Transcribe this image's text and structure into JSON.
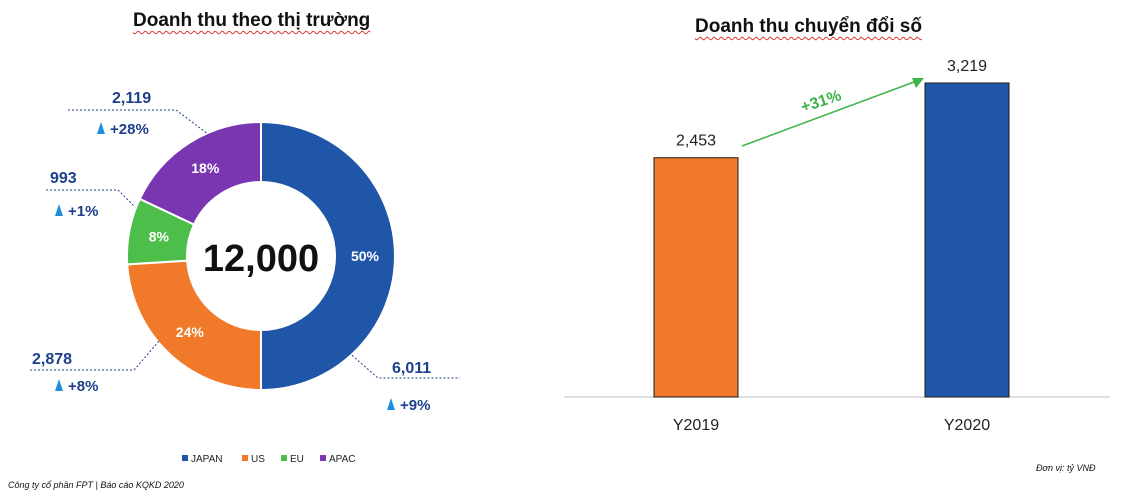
{
  "footer": "Công ty cổ phần FPT | Báo cáo KQKD 2020",
  "unit_note": "Đơn vị: tỷ VNĐ",
  "colors": {
    "japan": "#1F56A8",
    "us": "#F07A2A",
    "eu": "#4DBE4A",
    "apac": "#7A36B0",
    "label_blue": "#1E3F8C",
    "growth_icon": "#1E8FE0",
    "arrow": "#3BB44A"
  },
  "chart_data": [
    {
      "type": "pie",
      "title": "Doanh thu theo thị trường",
      "center_label": "12,000",
      "legend_position": "bottom",
      "slices": [
        {
          "name": "JAPAN",
          "percent_label": "50%",
          "share": 50,
          "value": "6,011",
          "growth": "+9%"
        },
        {
          "name": "US",
          "percent_label": "24%",
          "share": 24,
          "value": "2,878",
          "growth": "+8%"
        },
        {
          "name": "EU",
          "percent_label": "8%",
          "share": 8,
          "value": "993",
          "growth": "+1%"
        },
        {
          "name": "APAC",
          "percent_label": "18%",
          "share": 18,
          "value": "2,119",
          "growth": "+28%"
        }
      ]
    },
    {
      "type": "bar",
      "title": "Doanh thu chuyển đổi số",
      "categories": [
        "Y2019",
        "Y2020"
      ],
      "values": [
        2453,
        3219
      ],
      "value_labels": [
        "2,453",
        "3,219"
      ],
      "growth_label": "+31%",
      "ylim": [
        0,
        3219
      ]
    }
  ]
}
